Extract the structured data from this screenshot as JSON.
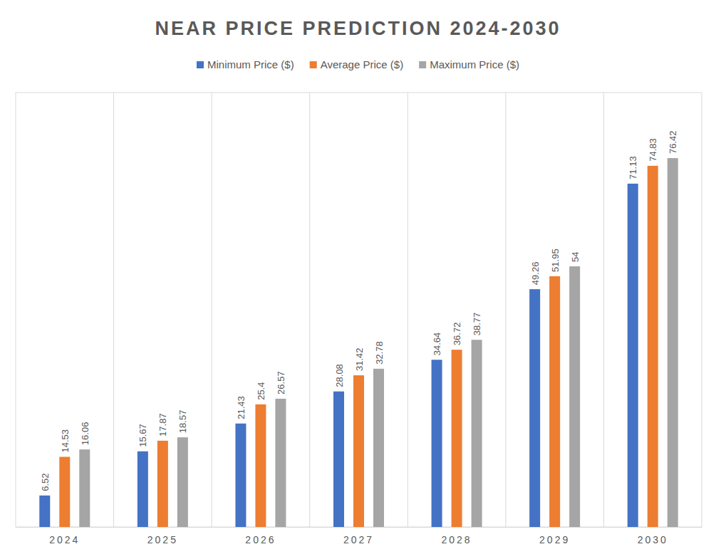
{
  "chart_data": {
    "type": "bar",
    "title": "NEAR PRICE PREDICTION 2024-2030",
    "categories": [
      "2024",
      "2025",
      "2026",
      "2027",
      "2028",
      "2029",
      "2030"
    ],
    "series": [
      {
        "name": "Minimum Price ($)",
        "color": "#4472c4",
        "values": [
          6.52,
          15.67,
          21.43,
          28.08,
          34.64,
          49.26,
          71.13
        ]
      },
      {
        "name": "Average Price ($)",
        "color": "#ed7d31",
        "values": [
          14.53,
          17.87,
          25.4,
          31.42,
          36.72,
          51.95,
          74.83
        ]
      },
      {
        "name": "Maximum Price ($)",
        "color": "#a5a5a5",
        "values": [
          16.06,
          18.57,
          26.57,
          32.78,
          38.77,
          54,
          76.42
        ]
      }
    ],
    "ylim": [
      0,
      90
    ],
    "grid": true,
    "data_labels": true,
    "tick_labels": "x",
    "legend": "top"
  }
}
